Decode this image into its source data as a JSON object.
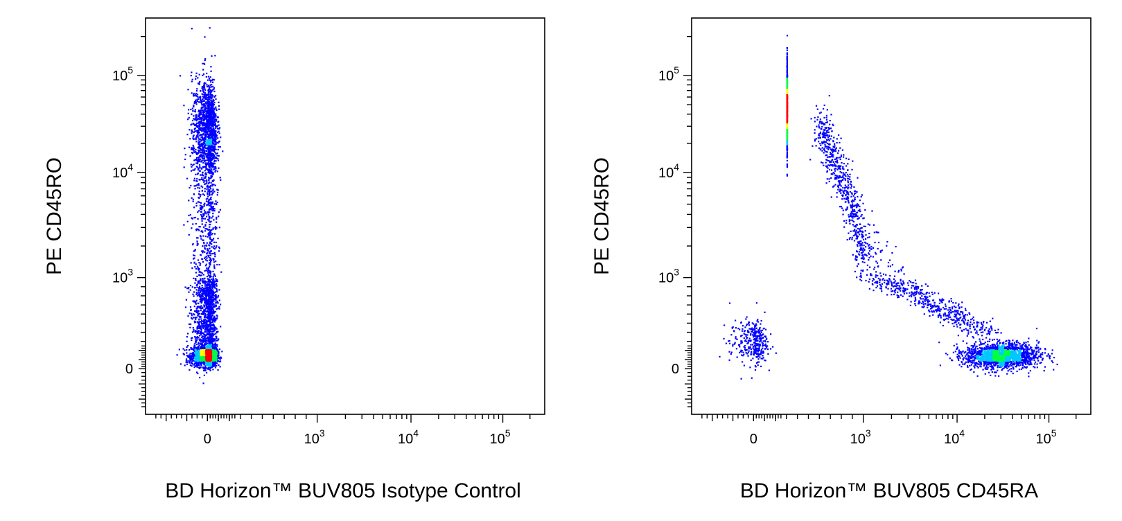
{
  "chart_data": [
    {
      "type": "scatter",
      "subtype": "flow-cytometry-density-dot-plot",
      "title": "",
      "xlabel": "BD Horizon™ BUV805 Isotype Control",
      "ylabel": "PE CD45RO",
      "x_scale": "biexponential",
      "y_scale": "biexponential",
      "x_ticks": [
        {
          "value": 0,
          "base": "0",
          "exp": ""
        },
        {
          "value": 1000,
          "base": "10",
          "exp": "3"
        },
        {
          "value": 10000,
          "base": "10",
          "exp": "4"
        },
        {
          "value": 100000,
          "base": "10",
          "exp": "5"
        }
      ],
      "y_ticks": [
        {
          "value": 0,
          "base": "0",
          "exp": ""
        },
        {
          "value": 1000,
          "base": "10",
          "exp": "3"
        },
        {
          "value": 10000,
          "base": "10",
          "exp": "4"
        },
        {
          "value": 100000,
          "base": "10",
          "exp": "5"
        }
      ],
      "xlim": [
        -300,
        250000
      ],
      "ylim": [
        -300,
        250000
      ],
      "density_colors": [
        "#0000ff",
        "#00c8ff",
        "#00ff40",
        "#ffff00",
        "#ff0000"
      ],
      "populations": [
        {
          "x_center": 0,
          "y_center": 150,
          "x_spread": 40,
          "y_spread": 60,
          "count": 1700,
          "shape": "cluster"
        },
        {
          "x_center": 0,
          "y_center": 30000,
          "x_spread": 40,
          "y_spread": 0.25,
          "count": 1300,
          "shape": "cluster"
        },
        {
          "x_center": 0,
          "y_range": [
            300,
            20000
          ],
          "x_spread": 40,
          "count": 1600,
          "shape": "band"
        }
      ]
    },
    {
      "type": "scatter",
      "subtype": "flow-cytometry-density-dot-plot",
      "title": "",
      "xlabel": "BD Horizon™ BUV805 CD45RA",
      "ylabel": "PE CD45RO",
      "x_scale": "biexponential",
      "y_scale": "biexponential",
      "x_ticks": [
        {
          "value": 0,
          "base": "0",
          "exp": ""
        },
        {
          "value": 1000,
          "base": "10",
          "exp": "3"
        },
        {
          "value": 10000,
          "base": "10",
          "exp": "4"
        },
        {
          "value": 100000,
          "base": "10",
          "exp": "5"
        }
      ],
      "y_ticks": [
        {
          "value": 0,
          "base": "0",
          "exp": ""
        },
        {
          "value": 1000,
          "base": "10",
          "exp": "3"
        },
        {
          "value": 10000,
          "base": "10",
          "exp": "4"
        },
        {
          "value": 100000,
          "base": "10",
          "exp": "5"
        }
      ],
      "xlim": [
        -300,
        250000
      ],
      "ylim": [
        -300,
        250000
      ],
      "density_colors": [
        "#0000ff",
        "#00c8ff",
        "#00ff40",
        "#ffff00",
        "#ff0000"
      ],
      "populations": [
        {
          "x_center": 300,
          "y_center": 45000,
          "x_spread": 0.35,
          "y_spread": 0.2,
          "count": 1300,
          "shape": "cluster"
        },
        {
          "x_center": 30000,
          "y_center": 150,
          "x_spread": 0.2,
          "y_spread": 70,
          "count": 1700,
          "shape": "cluster"
        },
        {
          "x_center": 0,
          "y_center": 300,
          "x_spread": 60,
          "y_spread": 120,
          "count": 350,
          "shape": "cluster"
        },
        {
          "from": [
            600,
            30000
          ],
          "to": [
            20000,
            400
          ],
          "count": 1200,
          "shape": "arc"
        }
      ]
    }
  ]
}
